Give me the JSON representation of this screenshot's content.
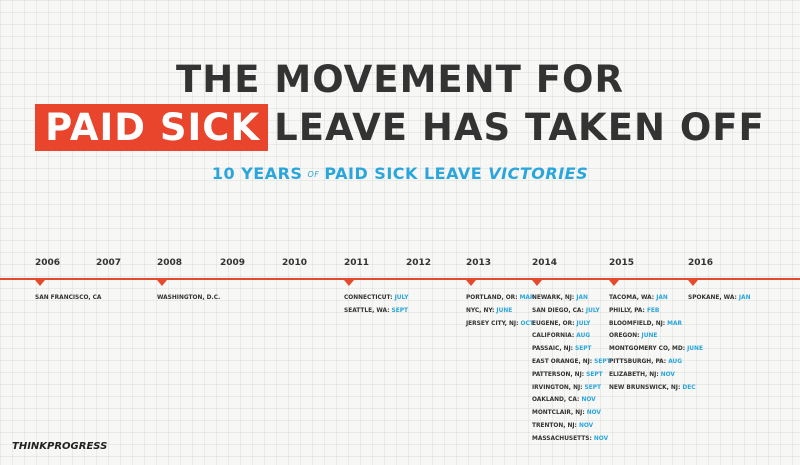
{
  "header": {
    "title_line1": "THE MOVEMENT FOR",
    "title_highlight": "PAID SICK",
    "title_line2_rest": "LEAVE HAS TAKEN OFF",
    "subtitle_lead": "10 YEARS",
    "subtitle_of": "OF",
    "subtitle_main": "PAID SICK LEAVE",
    "subtitle_end": "VICTORIES"
  },
  "colors": {
    "accent_red": "#e64a2e",
    "accent_blue": "#2aa6dc",
    "text": "#333333"
  },
  "timeline": {
    "years": [
      "2006",
      "2007",
      "2008",
      "2009",
      "2010",
      "2011",
      "2012",
      "2013",
      "2014",
      "2015",
      "2016"
    ],
    "groups": [
      {
        "year": "2006",
        "entries": [
          {
            "place": "SAN FRANCISCO, CA",
            "month": ""
          }
        ]
      },
      {
        "year": "2008",
        "entries": [
          {
            "place": "WASHINGTON, D.C.",
            "month": ""
          }
        ]
      },
      {
        "year": "2011",
        "entries": [
          {
            "place": "CONNECTICUT:",
            "month": "JULY"
          },
          {
            "place": "SEATTLE, WA:",
            "month": "SEPT"
          }
        ]
      },
      {
        "year": "2013",
        "entries": [
          {
            "place": "PORTLAND, OR:",
            "month": "MAR"
          },
          {
            "place": "NYC, NY:",
            "month": "JUNE"
          },
          {
            "place": "JERSEY CITY, NJ:",
            "month": "OCT"
          }
        ]
      },
      {
        "year": "2014",
        "entries": [
          {
            "place": "NEWARK, NJ:",
            "month": "JAN"
          },
          {
            "place": "SAN DIEGO, CA:",
            "month": "JULY"
          },
          {
            "place": "EUGENE, OR:",
            "month": "JULY"
          },
          {
            "place": "CALIFORNIA:",
            "month": "AUG"
          },
          {
            "place": "PASSAIC, NJ:",
            "month": "SEPT"
          },
          {
            "place": "EAST ORANGE, NJ:",
            "month": "SEPT"
          },
          {
            "place": "PATTERSON, NJ:",
            "month": "SEPT"
          },
          {
            "place": "IRVINGTON, NJ:",
            "month": "SEPT"
          },
          {
            "place": "OAKLAND, CA:",
            "month": "NOV"
          },
          {
            "place": "MONTCLAIR, NJ:",
            "month": "NOV"
          },
          {
            "place": "TRENTON, NJ:",
            "month": "NOV"
          },
          {
            "place": "MASSACHUSETTS:",
            "month": "NOV"
          }
        ]
      },
      {
        "year": "2015",
        "entries": [
          {
            "place": "TACOMA, WA:",
            "month": "JAN"
          },
          {
            "place": "PHILLY, PA:",
            "month": "FEB"
          },
          {
            "place": "BLOOMFIELD, NJ:",
            "month": "MAR"
          },
          {
            "place": "OREGON:",
            "month": "JUNE"
          },
          {
            "place": "MONTGOMERY CO, MD:",
            "month": "JUNE"
          },
          {
            "place": "PITTSBURGH, PA:",
            "month": "AUG"
          },
          {
            "place": "ELIZABETH, NJ:",
            "month": "NOV"
          },
          {
            "place": "NEW BRUNSWICK, NJ:",
            "month": "DEC"
          }
        ]
      },
      {
        "year": "2016",
        "entries": [
          {
            "place": "SPOKANE, WA:",
            "month": "JAN"
          }
        ]
      }
    ]
  },
  "footer": {
    "brand": "THINKPROGRESS"
  }
}
